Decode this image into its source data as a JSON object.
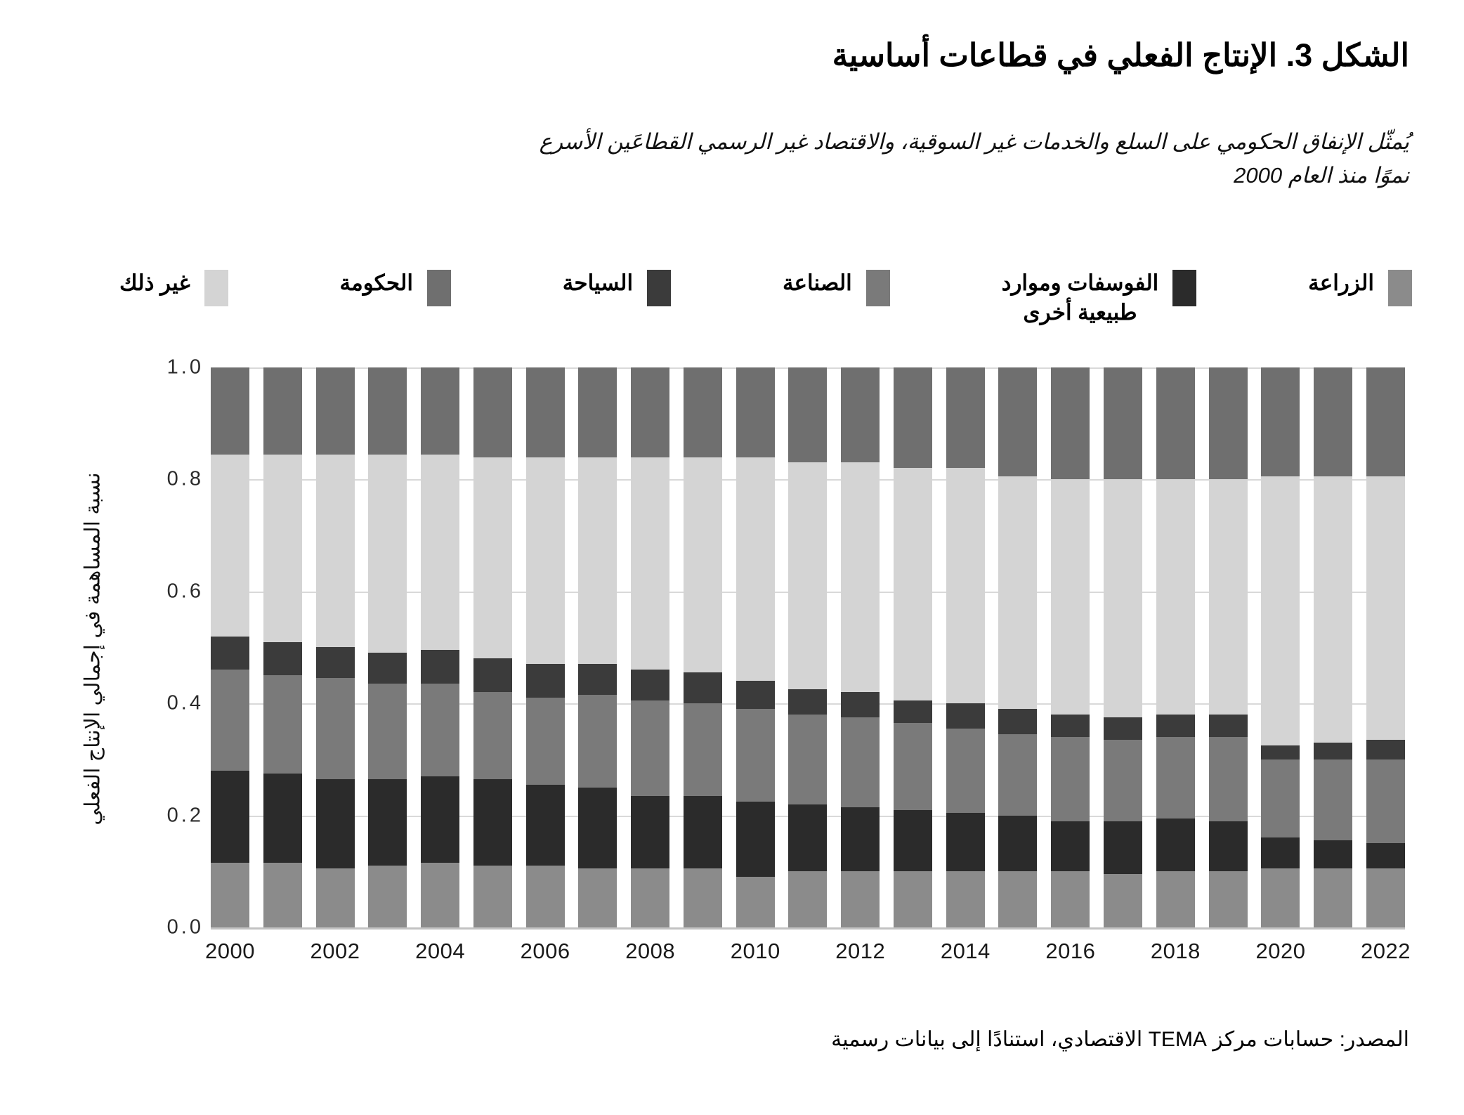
{
  "header": {
    "title": "الشكل 3. الإنتاج الفعلي في قطاعات أساسية",
    "subtitle_line1": "يُمثّل الإنفاق الحكومي على السلع والخدمات غير السوقية، والاقتصاد غير الرسمي القطاعَين الأسرع",
    "subtitle_line2": "نموًا منذ العام 2000"
  },
  "source": {
    "text": "المصدر: حسابات مركز TEMA الاقتصادي، استنادًا إلى بيانات رسمية"
  },
  "colors": {
    "agriculture": "#8b8b8b",
    "phosphates": "#2b2b2b",
    "industry": "#7a7a7a",
    "tourism": "#3b3b3b",
    "other": "#d4d4d4",
    "government": "#6f6f6f",
    "gridline": "#d9d9d9",
    "text": "#000000"
  },
  "legend": [
    {
      "id": "agriculture",
      "label": "الزراعة",
      "color": "#8b8b8b"
    },
    {
      "id": "phosphates",
      "label": "الفوسفات وموارد\nطبيعية أخرى",
      "color": "#2b2b2b"
    },
    {
      "id": "industry",
      "label": "الصناعة",
      "color": "#7a7a7a"
    },
    {
      "id": "tourism",
      "label": "السياحة",
      "color": "#3b3b3b"
    },
    {
      "id": "government",
      "label": "الحكومة",
      "color": "#6f6f6f"
    },
    {
      "id": "other",
      "label": "غير ذلك",
      "color": "#d4d4d4"
    }
  ],
  "chart_data": {
    "type": "bar",
    "stacked": true,
    "normalized_share": true,
    "title": "الشكل 3. الإنتاج الفعلي في قطاعات أساسية",
    "xlabel": "",
    "ylabel": "نسبة المساهمة في إجمالي الإنتاج الفعلي",
    "ylim": [
      0,
      1
    ],
    "grid": "horizontal",
    "legend_position": "top",
    "x": [
      2000,
      2001,
      2002,
      2003,
      2004,
      2005,
      2006,
      2007,
      2008,
      2009,
      2010,
      2011,
      2012,
      2013,
      2014,
      2015,
      2016,
      2017,
      2018,
      2019,
      2020,
      2021,
      2022
    ],
    "x_tick_labels": [
      "2000",
      "2002",
      "2004",
      "2006",
      "2008",
      "2010",
      "2012",
      "2014",
      "2016",
      "2018",
      "2020",
      "2022"
    ],
    "y_ticks": [
      "1.0",
      "0.8",
      "0.6",
      "0.4",
      "0.2",
      "0.0"
    ],
    "series_bottom_to_top": [
      {
        "id": "agriculture",
        "name": "الزراعة",
        "color": "#8b8b8b",
        "values": [
          0.115,
          0.115,
          0.105,
          0.11,
          0.115,
          0.11,
          0.11,
          0.105,
          0.105,
          0.105,
          0.09,
          0.1,
          0.1,
          0.1,
          0.1,
          0.1,
          0.1,
          0.095,
          0.1,
          0.1,
          0.105,
          0.105,
          0.105
        ]
      },
      {
        "id": "phosphates",
        "name": "الفوسفات وموارد طبيعية أخرى",
        "color": "#2b2b2b",
        "values": [
          0.165,
          0.16,
          0.16,
          0.155,
          0.155,
          0.155,
          0.145,
          0.145,
          0.13,
          0.13,
          0.135,
          0.12,
          0.115,
          0.11,
          0.105,
          0.1,
          0.09,
          0.095,
          0.095,
          0.09,
          0.055,
          0.05,
          0.045
        ]
      },
      {
        "id": "industry",
        "name": "الصناعة",
        "color": "#7a7a7a",
        "values": [
          0.18,
          0.175,
          0.18,
          0.17,
          0.165,
          0.155,
          0.155,
          0.165,
          0.17,
          0.165,
          0.165,
          0.16,
          0.16,
          0.155,
          0.15,
          0.145,
          0.15,
          0.145,
          0.145,
          0.15,
          0.14,
          0.145,
          0.15
        ]
      },
      {
        "id": "tourism",
        "name": "السياحة",
        "color": "#3b3b3b",
        "values": [
          0.06,
          0.06,
          0.055,
          0.055,
          0.06,
          0.06,
          0.06,
          0.055,
          0.055,
          0.055,
          0.05,
          0.045,
          0.045,
          0.04,
          0.045,
          0.045,
          0.04,
          0.04,
          0.04,
          0.04,
          0.025,
          0.03,
          0.035
        ]
      },
      {
        "id": "other",
        "name": "غير ذلك",
        "color": "#d4d4d4",
        "values": [
          0.325,
          0.335,
          0.345,
          0.355,
          0.35,
          0.36,
          0.37,
          0.37,
          0.38,
          0.385,
          0.4,
          0.405,
          0.41,
          0.415,
          0.42,
          0.415,
          0.42,
          0.425,
          0.42,
          0.42,
          0.48,
          0.475,
          0.47
        ]
      },
      {
        "id": "government",
        "name": "الحكومة",
        "color": "#6f6f6f",
        "values": [
          0.155,
          0.155,
          0.155,
          0.155,
          0.155,
          0.16,
          0.16,
          0.16,
          0.16,
          0.16,
          0.16,
          0.17,
          0.17,
          0.18,
          0.18,
          0.195,
          0.2,
          0.2,
          0.2,
          0.2,
          0.195,
          0.195,
          0.195
        ]
      }
    ]
  }
}
